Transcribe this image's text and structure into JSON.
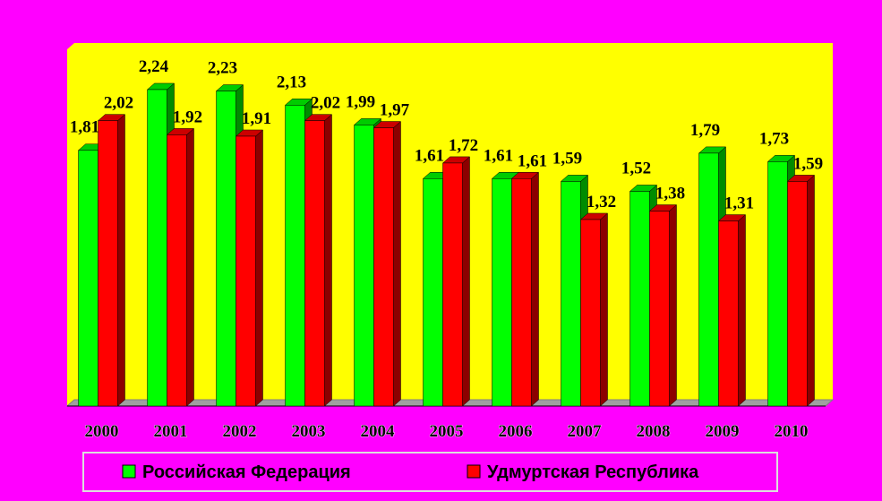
{
  "chart_data": {
    "type": "bar3d",
    "categories": [
      "2000",
      "2001",
      "2002",
      "2003",
      "2004",
      "2005",
      "2006",
      "2007",
      "2008",
      "2009",
      "2010"
    ],
    "series": [
      {
        "name": "Российская Федерация",
        "color": "#00ff00",
        "values": [
          1.81,
          2.24,
          2.23,
          2.13,
          1.99,
          1.61,
          1.61,
          1.59,
          1.52,
          1.79,
          1.73
        ],
        "value_labels": [
          "1,81",
          "2,24",
          "2,23",
          "2,13",
          "1,99",
          "1,61",
          "1,61",
          "1,59",
          "1,52",
          "1,79",
          "1,73"
        ]
      },
      {
        "name": "Удмуртская Республика",
        "color": "#ff0000",
        "values": [
          2.02,
          1.92,
          1.91,
          2.02,
          1.97,
          1.72,
          1.61,
          1.32,
          1.38,
          1.31,
          1.59
        ],
        "value_labels": [
          "2,02",
          "1,92",
          "1,91",
          "2,02",
          "1,97",
          "1,72",
          "1,61",
          "1,32",
          "1,38",
          "1,31",
          "1,59"
        ]
      }
    ]
  }
}
